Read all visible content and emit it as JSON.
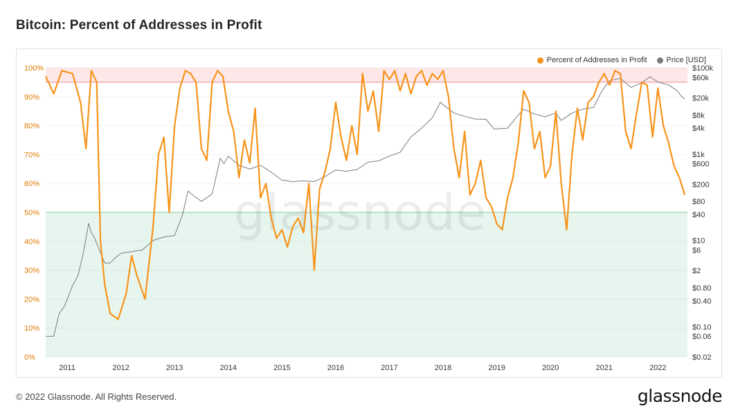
{
  "page": {
    "title": "Bitcoin: Percent of Addresses in Profit",
    "footer": "© 2022 Glassnode. All Rights Reserved.",
    "brand": "glassnode",
    "watermark": "glassnode"
  },
  "colors": {
    "profit": "#f7931a",
    "price": "#7a7a7a",
    "upper_band": "#fde7e8",
    "lower_band": "#e6f6ee",
    "upper_line": "#f08a8a",
    "lower_line": "#8fd3a8",
    "left_axis_text": "#e07b00",
    "right_axis_text": "#333333"
  },
  "chart_data": {
    "type": "line",
    "title": "Bitcoin: Percent of Addresses in Profit",
    "x_range": [
      2010.6,
      2022.55
    ],
    "x_ticks": [
      "2011",
      "2012",
      "2013",
      "2014",
      "2015",
      "2016",
      "2017",
      "2018",
      "2019",
      "2020",
      "2021",
      "2022"
    ],
    "y_left": {
      "range": [
        0,
        100
      ],
      "ticks": [
        "0%",
        "10%",
        "20%",
        "30%",
        "40%",
        "50%",
        "60%",
        "70%",
        "80%",
        "90%",
        "100%"
      ],
      "unit": "%"
    },
    "y_right": {
      "scale": "log",
      "range": [
        0.02,
        100000
      ],
      "ticks": [
        {
          "label": "$100k",
          "value": 100000
        },
        {
          "label": "$60k",
          "value": 60000
        },
        {
          "label": "$20k",
          "value": 20000
        },
        {
          "label": "$8k",
          "value": 8000
        },
        {
          "label": "$4k",
          "value": 4000
        },
        {
          "label": "$1k",
          "value": 1000
        },
        {
          "label": "$600",
          "value": 600
        },
        {
          "label": "$200",
          "value": 200
        },
        {
          "label": "$80",
          "value": 80
        },
        {
          "label": "$40",
          "value": 40
        },
        {
          "label": "$10",
          "value": 10
        },
        {
          "label": "$6",
          "value": 6
        },
        {
          "label": "$2",
          "value": 2
        },
        {
          "label": "$0.80",
          "value": 0.8
        },
        {
          "label": "$0.40",
          "value": 0.4
        },
        {
          "label": "$0.10",
          "value": 0.1
        },
        {
          "label": "$0.06",
          "value": 0.06
        },
        {
          "label": "$0.02",
          "value": 0.02
        }
      ]
    },
    "bands": [
      {
        "from": 95,
        "to": 100,
        "color": "upper_band"
      },
      {
        "from": 0,
        "to": 50,
        "color": "lower_band"
      }
    ],
    "threshold_lines": [
      95,
      50
    ],
    "legend": {
      "position": "top-right"
    },
    "series": [
      {
        "name": "Percent of Addresses in Profit",
        "axis": "left",
        "color": "profit",
        "x": [
          2010.6,
          2010.75,
          2010.9,
          2011.1,
          2011.25,
          2011.35,
          2011.45,
          2011.55,
          2011.62,
          2011.7,
          2011.8,
          2011.95,
          2012.1,
          2012.2,
          2012.3,
          2012.45,
          2012.6,
          2012.7,
          2012.8,
          2012.9,
          2013.0,
          2013.1,
          2013.2,
          2013.3,
          2013.4,
          2013.5,
          2013.6,
          2013.7,
          2013.8,
          2013.9,
          2014.0,
          2014.1,
          2014.2,
          2014.3,
          2014.4,
          2014.5,
          2014.6,
          2014.7,
          2014.8,
          2014.9,
          2015.0,
          2015.1,
          2015.2,
          2015.3,
          2015.4,
          2015.5,
          2015.6,
          2015.7,
          2015.8,
          2015.9,
          2016.0,
          2016.1,
          2016.2,
          2016.3,
          2016.4,
          2016.5,
          2016.6,
          2016.7,
          2016.8,
          2016.9,
          2017.0,
          2017.1,
          2017.2,
          2017.3,
          2017.4,
          2017.5,
          2017.6,
          2017.7,
          2017.8,
          2017.9,
          2018.0,
          2018.1,
          2018.2,
          2018.3,
          2018.4,
          2018.5,
          2018.6,
          2018.7,
          2018.8,
          2018.9,
          2019.0,
          2019.1,
          2019.2,
          2019.3,
          2019.4,
          2019.5,
          2019.6,
          2019.7,
          2019.8,
          2019.9,
          2020.0,
          2020.1,
          2020.2,
          2020.3,
          2020.4,
          2020.5,
          2020.6,
          2020.7,
          2020.8,
          2020.9,
          2021.0,
          2021.1,
          2021.2,
          2021.3,
          2021.4,
          2021.5,
          2021.6,
          2021.7,
          2021.8,
          2021.9,
          2022.0,
          2022.1,
          2022.2,
          2022.3,
          2022.4,
          2022.5
        ],
        "values": [
          97,
          91,
          99,
          98,
          88,
          72,
          99,
          95,
          40,
          25,
          15,
          13,
          22,
          35,
          28,
          20,
          45,
          70,
          76,
          50,
          80,
          93,
          99,
          98,
          95,
          72,
          68,
          95,
          99,
          97,
          85,
          78,
          62,
          75,
          67,
          86,
          55,
          60,
          48,
          41,
          44,
          38,
          45,
          48,
          43,
          60,
          30,
          58,
          64,
          72,
          88,
          76,
          68,
          80,
          70,
          98,
          85,
          92,
          78,
          99,
          96,
          99,
          92,
          98,
          91,
          97,
          99,
          94,
          98,
          96,
          99,
          90,
          72,
          62,
          78,
          56,
          60,
          68,
          55,
          52,
          46,
          44,
          55,
          62,
          74,
          92,
          88,
          72,
          78,
          62,
          66,
          85,
          60,
          44,
          70,
          86,
          75,
          88,
          90,
          95,
          98,
          94,
          99,
          98,
          78,
          72,
          84,
          95,
          94,
          76,
          93,
          80,
          74,
          66,
          62,
          56
        ]
      },
      {
        "name": "Price [USD]",
        "axis": "right",
        "color": "price",
        "x": [
          2010.6,
          2010.75,
          2010.85,
          2010.95,
          2011.1,
          2011.2,
          2011.3,
          2011.4,
          2011.45,
          2011.5,
          2011.6,
          2011.7,
          2011.8,
          2011.9,
          2012.0,
          2012.2,
          2012.4,
          2012.6,
          2012.8,
          2013.0,
          2013.15,
          2013.25,
          2013.35,
          2013.5,
          2013.7,
          2013.85,
          2013.92,
          2014.0,
          2014.2,
          2014.4,
          2014.6,
          2014.8,
          2015.0,
          2015.2,
          2015.4,
          2015.6,
          2015.8,
          2016.0,
          2016.2,
          2016.4,
          2016.6,
          2016.8,
          2017.0,
          2017.2,
          2017.4,
          2017.6,
          2017.8,
          2017.95,
          2018.0,
          2018.2,
          2018.4,
          2018.6,
          2018.8,
          2018.95,
          2019.2,
          2019.4,
          2019.5,
          2019.7,
          2019.9,
          2020.1,
          2020.2,
          2020.4,
          2020.6,
          2020.8,
          2020.95,
          2021.1,
          2021.3,
          2021.5,
          2021.7,
          2021.85,
          2022.0,
          2022.2,
          2022.35,
          2022.45,
          2022.5
        ],
        "values": [
          0.06,
          0.06,
          0.2,
          0.3,
          0.9,
          1.5,
          5,
          25,
          15,
          12,
          6,
          3,
          3,
          4,
          5,
          5.5,
          6,
          10,
          12,
          13,
          40,
          140,
          110,
          80,
          120,
          800,
          600,
          900,
          550,
          450,
          550,
          380,
          250,
          230,
          240,
          230,
          300,
          430,
          400,
          440,
          650,
          700,
          900,
          1100,
          2500,
          4000,
          7000,
          16000,
          14000,
          9000,
          7500,
          6500,
          6400,
          3800,
          4000,
          8000,
          11000,
          8500,
          7300,
          9000,
          6000,
          9000,
          11000,
          12000,
          28000,
          50000,
          57000,
          35000,
          45000,
          62000,
          47000,
          40000,
          30000,
          21000,
          19000
        ]
      }
    ]
  }
}
